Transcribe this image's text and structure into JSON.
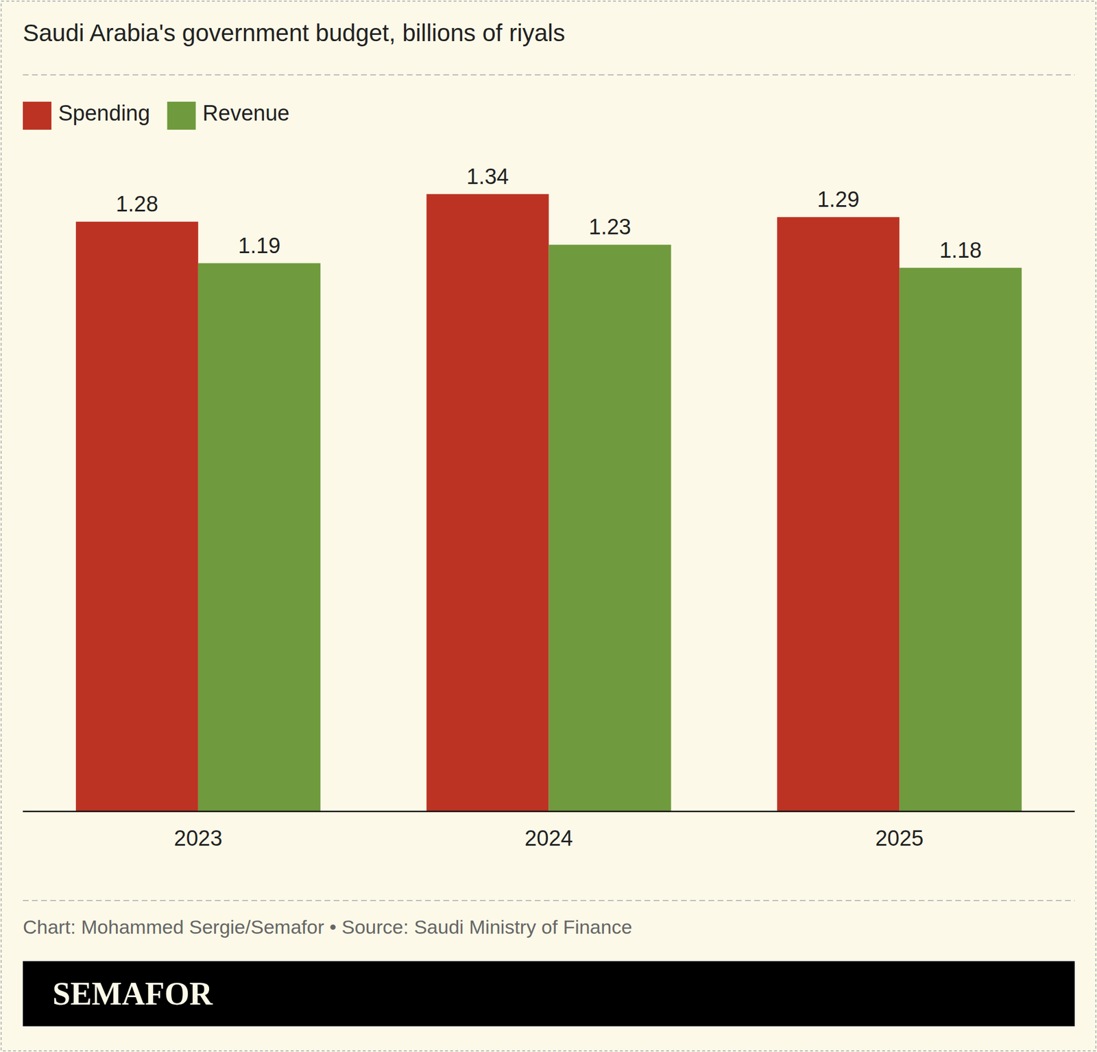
{
  "chart_data": {
    "type": "bar",
    "title": "Saudi Arabia's government budget, billions of riyals",
    "categories": [
      "2023",
      "2024",
      "2025"
    ],
    "series": [
      {
        "name": "Spending",
        "color": "#bc3323",
        "values": [
          1.28,
          1.34,
          1.29
        ]
      },
      {
        "name": "Revenue",
        "color": "#6f9a3d",
        "values": [
          1.19,
          1.23,
          1.18
        ]
      }
    ],
    "ylim": [
      0,
      1.6
    ],
    "data_labels": true,
    "tick_labels": "x",
    "legend": "top-left",
    "source": "Chart: Mohammed Sergie/Semafor • Source: Saudi Ministry of Finance",
    "brand": "SEMAFOR"
  }
}
